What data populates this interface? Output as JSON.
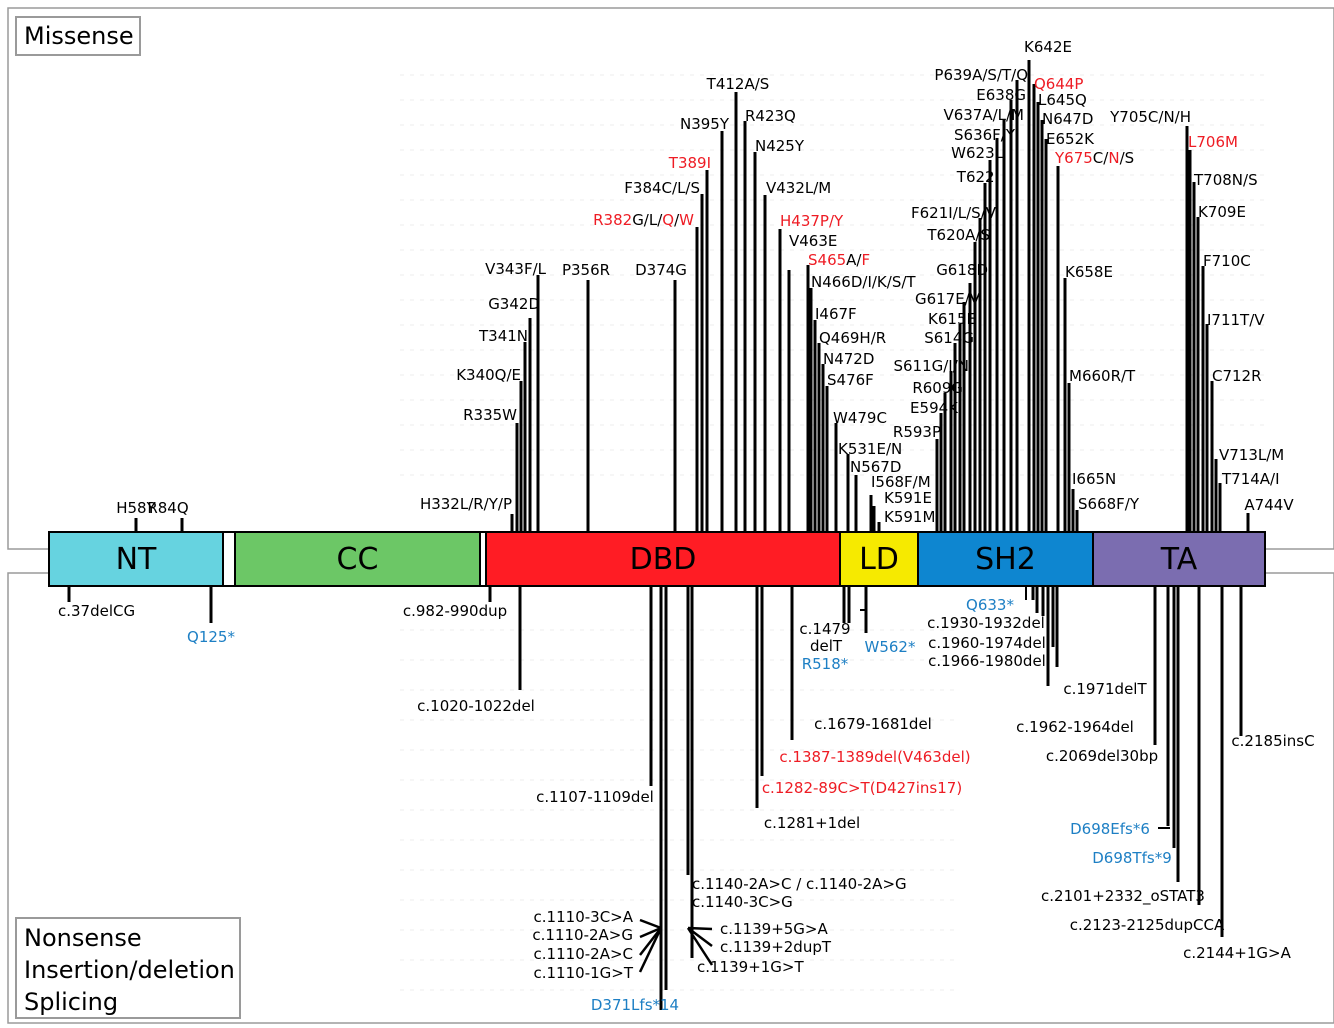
{
  "colors": {
    "black": "#000000",
    "red": "#ee1c24",
    "blue": "#1d7fc4",
    "panel_border": "#9a9a9a"
  },
  "legends": {
    "top": [
      "Missense"
    ],
    "bottom": [
      "Nonsense",
      "Insertion/deletion",
      "Splicing"
    ]
  },
  "domains": [
    {
      "name": "NT",
      "color": "#66d3e0"
    },
    {
      "name": "",
      "color": "#ffffff"
    },
    {
      "name": "CC",
      "color": "#6cc766"
    },
    {
      "name": "",
      "color": "#ffffff"
    },
    {
      "name": "DBD",
      "color": "#ff1c24"
    },
    {
      "name": "LD",
      "color": "#f6ea00"
    },
    {
      "name": "SH2",
      "color": "#0e86d0"
    },
    {
      "name": "TA",
      "color": "#7b6db0"
    }
  ],
  "missense": [
    {
      "parts": [
        [
          "H58Y",
          "k"
        ]
      ]
    },
    {
      "parts": [
        [
          "R84Q",
          "k"
        ]
      ]
    },
    {
      "parts": [
        [
          "H332L/R/Y/P",
          "k"
        ]
      ]
    },
    {
      "parts": [
        [
          "R335W",
          "k"
        ]
      ]
    },
    {
      "parts": [
        [
          "K340Q/E",
          "k"
        ]
      ]
    },
    {
      "parts": [
        [
          "T341N",
          "k"
        ]
      ]
    },
    {
      "parts": [
        [
          "G342D",
          "k"
        ]
      ]
    },
    {
      "parts": [
        [
          "V343F/L",
          "k"
        ]
      ]
    },
    {
      "parts": [
        [
          "P356R",
          "k"
        ]
      ]
    },
    {
      "parts": [
        [
          "D374G",
          "k"
        ]
      ]
    },
    {
      "parts": [
        [
          "R382",
          "r"
        ],
        [
          "G/L/",
          "k"
        ],
        [
          "Q",
          "r"
        ],
        [
          "/",
          "k"
        ],
        [
          "W",
          "r"
        ]
      ]
    },
    {
      "parts": [
        [
          "F384C/L/S",
          "k"
        ]
      ]
    },
    {
      "parts": [
        [
          "T389I",
          "r"
        ]
      ]
    },
    {
      "parts": [
        [
          "N395Y",
          "k"
        ]
      ]
    },
    {
      "parts": [
        [
          "T412A/S",
          "k"
        ]
      ]
    },
    {
      "parts": [
        [
          "R423Q",
          "k"
        ]
      ]
    },
    {
      "parts": [
        [
          "N425Y",
          "k"
        ]
      ]
    },
    {
      "parts": [
        [
          "V432L/M",
          "k"
        ]
      ]
    },
    {
      "parts": [
        [
          "H437P/Y",
          "r"
        ]
      ]
    },
    {
      "parts": [
        [
          "V463E",
          "k"
        ]
      ]
    },
    {
      "parts": [
        [
          "S465",
          "r"
        ],
        [
          "A/",
          "k"
        ],
        [
          "F",
          "r"
        ]
      ]
    },
    {
      "parts": [
        [
          "N466D/I/K/S/T",
          "k"
        ]
      ]
    },
    {
      "parts": [
        [
          "I467F",
          "k"
        ]
      ]
    },
    {
      "parts": [
        [
          "Q469H/R",
          "k"
        ]
      ]
    },
    {
      "parts": [
        [
          "N472D",
          "k"
        ]
      ]
    },
    {
      "parts": [
        [
          "S476F",
          "k"
        ]
      ]
    },
    {
      "parts": [
        [
          "W479C",
          "k"
        ]
      ]
    },
    {
      "parts": [
        [
          "K531E/N",
          "k"
        ]
      ]
    },
    {
      "parts": [
        [
          "N567D",
          "k"
        ]
      ]
    },
    {
      "parts": [
        [
          "I568F/M",
          "k"
        ]
      ]
    },
    {
      "parts": [
        [
          "K591E",
          "k"
        ]
      ]
    },
    {
      "parts": [
        [
          "K591M",
          "k"
        ]
      ]
    },
    {
      "parts": [
        [
          "R593P",
          "k"
        ]
      ]
    },
    {
      "parts": [
        [
          "E594K",
          "k"
        ]
      ]
    },
    {
      "parts": [
        [
          "R609G",
          "k"
        ]
      ]
    },
    {
      "parts": [
        [
          "S611G/I/N",
          "k"
        ]
      ]
    },
    {
      "parts": [
        [
          "S614G",
          "k"
        ]
      ]
    },
    {
      "parts": [
        [
          "K615E",
          "k"
        ]
      ]
    },
    {
      "parts": [
        [
          "G617E/V",
          "k"
        ]
      ]
    },
    {
      "parts": [
        [
          "G618D",
          "k"
        ]
      ]
    },
    {
      "parts": [
        [
          "T620A/S",
          "k"
        ]
      ]
    },
    {
      "parts": [
        [
          "F621I/L/S/V",
          "k"
        ]
      ]
    },
    {
      "parts": [
        [
          "T622I",
          "k"
        ]
      ]
    },
    {
      "parts": [
        [
          "W623L",
          "k"
        ]
      ]
    },
    {
      "parts": [
        [
          "S636F/Y",
          "k"
        ]
      ]
    },
    {
      "parts": [
        [
          "V637A/L/M",
          "k"
        ]
      ]
    },
    {
      "parts": [
        [
          "E638G",
          "k"
        ]
      ]
    },
    {
      "parts": [
        [
          "P639A/S/T/Q",
          "k"
        ]
      ]
    },
    {
      "parts": [
        [
          "K642E",
          "k"
        ]
      ]
    },
    {
      "parts": [
        [
          "Q644P",
          "r"
        ]
      ]
    },
    {
      "parts": [
        [
          "L645Q",
          "k"
        ]
      ]
    },
    {
      "parts": [
        [
          "N647D",
          "k"
        ]
      ]
    },
    {
      "parts": [
        [
          "E652K",
          "k"
        ]
      ]
    },
    {
      "parts": [
        [
          "Y675",
          "r"
        ],
        [
          "C/",
          "k"
        ],
        [
          "N",
          "r"
        ],
        [
          "/S",
          "k"
        ]
      ]
    },
    {
      "parts": [
        [
          "K658E",
          "k"
        ]
      ]
    },
    {
      "parts": [
        [
          "M660R/T",
          "k"
        ]
      ]
    },
    {
      "parts": [
        [
          "I665N",
          "k"
        ]
      ]
    },
    {
      "parts": [
        [
          "S668F/Y",
          "k"
        ]
      ]
    },
    {
      "parts": [
        [
          "Y705C/N/H",
          "k"
        ]
      ]
    },
    {
      "parts": [
        [
          "L706M",
          "r"
        ]
      ]
    },
    {
      "parts": [
        [
          "T708N/S",
          "k"
        ]
      ]
    },
    {
      "parts": [
        [
          "K709E",
          "k"
        ]
      ]
    },
    {
      "parts": [
        [
          "F710C",
          "k"
        ]
      ]
    },
    {
      "parts": [
        [
          "I711T/V",
          "k"
        ]
      ]
    },
    {
      "parts": [
        [
          "C712R",
          "k"
        ]
      ]
    },
    {
      "parts": [
        [
          "V713L/M",
          "k"
        ]
      ]
    },
    {
      "parts": [
        [
          "T714A/I",
          "k"
        ]
      ]
    },
    {
      "parts": [
        [
          "A744V",
          "k"
        ]
      ]
    }
  ],
  "lower": [
    {
      "parts": [
        [
          "c.37delCG",
          "k"
        ]
      ]
    },
    {
      "parts": [
        [
          "Q125*",
          "b"
        ]
      ]
    },
    {
      "parts": [
        [
          "c.982-990dup",
          "k"
        ]
      ]
    },
    {
      "parts": [
        [
          "c.1020-1022del",
          "k"
        ]
      ]
    },
    {
      "parts": [
        [
          "c.1107-1109del",
          "k"
        ]
      ]
    },
    {
      "parts": [
        [
          "c.1110-3C>A",
          "k"
        ]
      ]
    },
    {
      "parts": [
        [
          "c.1110-2A>G",
          "k"
        ]
      ]
    },
    {
      "parts": [
        [
          "c.1110-2A>C",
          "k"
        ]
      ]
    },
    {
      "parts": [
        [
          "c.1110-1G>T",
          "k"
        ]
      ]
    },
    {
      "parts": [
        [
          "D371Lfs*14",
          "b"
        ]
      ]
    },
    {
      "parts": [
        [
          "c.1140-2A>C / c.1140-2A>G",
          "k"
        ]
      ]
    },
    {
      "parts": [
        [
          "c.1140-3C>G",
          "k"
        ]
      ]
    },
    {
      "parts": [
        [
          "c.1139+5G>A",
          "k"
        ]
      ]
    },
    {
      "parts": [
        [
          "c.1139+2dupT",
          "k"
        ]
      ]
    },
    {
      "parts": [
        [
          "c.1139+1G>T",
          "k"
        ]
      ]
    },
    {
      "parts": [
        [
          "c.1281+1del",
          "k"
        ]
      ]
    },
    {
      "parts": [
        [
          "c.1282-89C>T(D427ins17)",
          "r"
        ]
      ]
    },
    {
      "parts": [
        [
          "c.1387-1389del(V463del)",
          "r"
        ]
      ]
    },
    {
      "parts": [
        [
          "c.1479",
          "k"
        ]
      ]
    },
    {
      "parts": [
        [
          "delT",
          "k"
        ]
      ]
    },
    {
      "parts": [
        [
          "R518*",
          "b"
        ]
      ]
    },
    {
      "parts": [
        [
          "W562*",
          "b"
        ]
      ]
    },
    {
      "parts": [
        [
          "c.1679-1681del",
          "k"
        ]
      ]
    },
    {
      "parts": [
        [
          "Q633*",
          "b"
        ]
      ]
    },
    {
      "parts": [
        [
          "c.1930-1932del",
          "k"
        ]
      ]
    },
    {
      "parts": [
        [
          "c.1960-1974del",
          "k"
        ]
      ]
    },
    {
      "parts": [
        [
          "c.1966-1980del",
          "k"
        ]
      ]
    },
    {
      "parts": [
        [
          "c.1971delT",
          "k"
        ]
      ]
    },
    {
      "parts": [
        [
          "c.1962-1964del",
          "k"
        ]
      ]
    },
    {
      "parts": [
        [
          "c.2069del30bp",
          "k"
        ]
      ]
    },
    {
      "parts": [
        [
          "c.2185insC",
          "k"
        ]
      ]
    },
    {
      "parts": [
        [
          "D698Efs*6",
          "b"
        ]
      ]
    },
    {
      "parts": [
        [
          "D698Tfs*9",
          "b"
        ]
      ]
    },
    {
      "parts": [
        [
          "c.2101+2332_oSTAT3",
          "k"
        ]
      ]
    },
    {
      "parts": [
        [
          "c.2123-2125dupCCA",
          "k"
        ]
      ]
    },
    {
      "parts": [
        [
          "c.2144+1G>A",
          "k"
        ]
      ]
    }
  ]
}
